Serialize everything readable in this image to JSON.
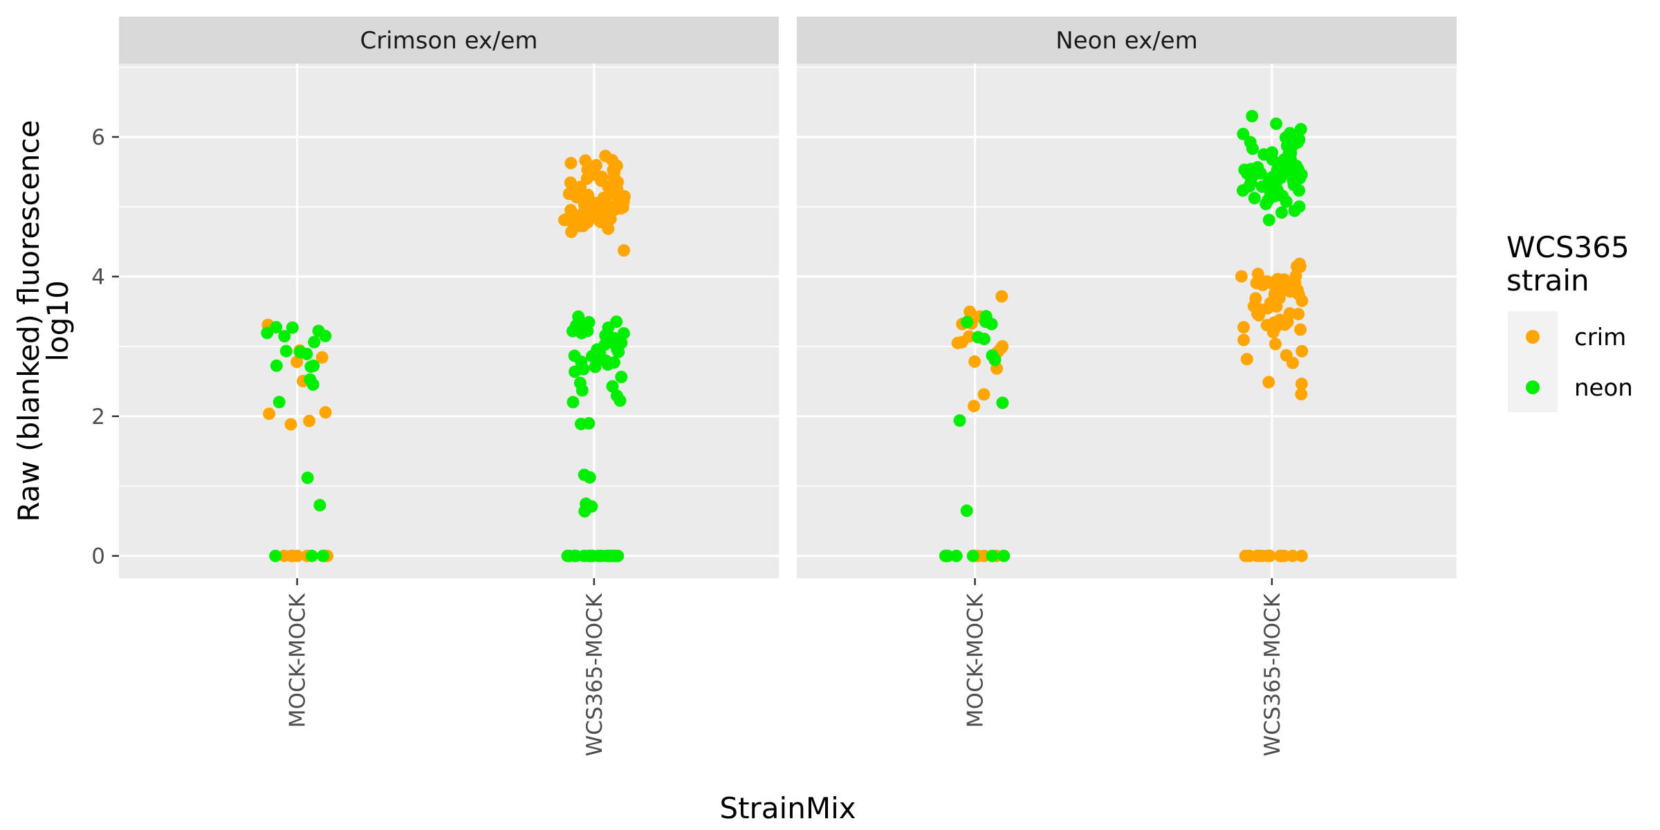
{
  "chart_data": {
    "type": "scatter",
    "subtype": "jittered strip plot, faceted",
    "xlabel": "StrainMix",
    "ylabel": "Raw (blanked) fluorescence",
    "ylabel_line2": "log10",
    "ylim": [
      -0.32,
      7.05
    ],
    "y_ticks": [
      0,
      2,
      4,
      6
    ],
    "y_tick_labels": [
      "0",
      "2",
      "4",
      "6"
    ],
    "categories": [
      "MOCK-MOCK",
      "WCS365-MOCK"
    ],
    "grid": true,
    "legend_position": "right",
    "legend": {
      "title_line1": "WCS365",
      "title_line2": "strain",
      "entries": [
        {
          "name": "crim",
          "color": "#FFA500"
        },
        {
          "name": "neon",
          "color": "#00EE00"
        }
      ]
    },
    "colors": {
      "crim": "#FFA500",
      "neon": "#00EE00",
      "panel_background": "#EBEBEB",
      "strip_background": "#D9D9D9",
      "grid": "#FFFFFF"
    },
    "facets": [
      {
        "label": "Crimson ex/em",
        "groups": [
          {
            "category": "MOCK-MOCK",
            "series": [
              {
                "name": "crim",
                "values": [
                  3.28,
                  2.95,
                  2.82,
                  2.78,
                  2.52,
                  2.05,
                  2.03,
                  1.93,
                  1.91,
                  0,
                  0,
                  0,
                  0,
                  0,
                  0,
                  0
                ]
              },
              {
                "name": "neon",
                "values": [
                  3.28,
                  3.25,
                  3.21,
                  3.19,
                  3.15,
                  3.12,
                  3.05,
                  2.96,
                  2.93,
                  2.9,
                  2.75,
                  2.72,
                  2.7,
                  2.53,
                  2.45,
                  2.2,
                  1.12,
                  0.72,
                  0,
                  0,
                  0
                ]
              }
            ]
          },
          {
            "category": "WCS365-MOCK",
            "series": [
              {
                "name": "crim",
                "values": [
                  5.72,
                  5.68,
                  5.65,
                  5.62,
                  5.6,
                  5.58,
                  5.55,
                  5.52,
                  5.5,
                  5.48,
                  5.45,
                  5.42,
                  5.4,
                  5.38,
                  5.35,
                  5.33,
                  5.3,
                  5.28,
                  5.26,
                  5.24,
                  5.22,
                  5.2,
                  5.18,
                  5.16,
                  5.15,
                  5.13,
                  5.12,
                  5.1,
                  5.09,
                  5.08,
                  5.06,
                  5.05,
                  5.04,
                  5.03,
                  5.02,
                  5.01,
                  5.0,
                  4.99,
                  4.98,
                  4.97,
                  4.96,
                  4.95,
                  4.94,
                  4.93,
                  4.92,
                  4.91,
                  4.9,
                  4.89,
                  4.88,
                  4.87,
                  4.86,
                  4.85,
                  4.84,
                  4.83,
                  4.82,
                  4.81,
                  4.8,
                  4.79,
                  4.78,
                  4.77,
                  4.76,
                  4.75,
                  4.74,
                  4.73,
                  4.72,
                  4.7,
                  4.65,
                  4.35
                ]
              },
              {
                "name": "neon",
                "values": [
                  3.42,
                  3.38,
                  3.35,
                  3.33,
                  3.31,
                  3.29,
                  3.27,
                  3.25,
                  3.22,
                  3.2,
                  3.18,
                  3.15,
                  3.12,
                  3.1,
                  3.08,
                  3.05,
                  3.03,
                  3.0,
                  2.98,
                  2.96,
                  2.94,
                  2.92,
                  2.9,
                  2.87,
                  2.85,
                  2.82,
                  2.8,
                  2.77,
                  2.75,
                  2.72,
                  2.7,
                  2.65,
                  2.62,
                  2.55,
                  2.5,
                  2.45,
                  2.35,
                  2.3,
                  2.2,
                  2.18,
                  1.9,
                  1.9,
                  1.18,
                  1.12,
                  0.72,
                  0.7,
                  0.62,
                  0,
                  0,
                  0,
                  0,
                  0,
                  0,
                  0,
                  0,
                  0,
                  0,
                  0,
                  0,
                  0,
                  0,
                  0,
                  0,
                  0,
                  0,
                  0,
                  0,
                  0,
                  0
                ]
              }
            ]
          }
        ]
      },
      {
        "label": "Neon ex/em",
        "groups": [
          {
            "category": "MOCK-MOCK",
            "series": [
              {
                "name": "crim",
                "values": [
                  3.7,
                  3.47,
                  3.45,
                  3.35,
                  3.3,
                  3.15,
                  3.08,
                  3.05,
                  3.02,
                  2.98,
                  2.92,
                  2.78,
                  2.7,
                  2.32,
                  2.15,
                  0,
                  0,
                  0,
                  0,
                  0,
                  0
                ]
              },
              {
                "name": "neon",
                "values": [
                  3.42,
                  3.35,
                  3.32,
                  3.3,
                  3.15,
                  3.08,
                  2.85,
                  2.78,
                  2.2,
                  1.95,
                  0.63,
                  0,
                  0,
                  0,
                  0,
                  0,
                  0
                ]
              }
            ]
          },
          {
            "category": "WCS365-MOCK",
            "series": [
              {
                "name": "crim",
                "values": [
                  4.18,
                  4.15,
                  4.12,
                  4.05,
                  4.0,
                  3.98,
                  3.96,
                  3.95,
                  3.94,
                  3.93,
                  3.92,
                  3.9,
                  3.88,
                  3.86,
                  3.85,
                  3.82,
                  3.8,
                  3.78,
                  3.76,
                  3.74,
                  3.72,
                  3.7,
                  3.68,
                  3.65,
                  3.62,
                  3.6,
                  3.58,
                  3.56,
                  3.55,
                  3.53,
                  3.5,
                  3.48,
                  3.45,
                  3.42,
                  3.4,
                  3.38,
                  3.35,
                  3.32,
                  3.3,
                  3.28,
                  3.25,
                  3.22,
                  3.2,
                  3.1,
                  3.05,
                  2.95,
                  2.85,
                  2.8,
                  2.75,
                  2.48,
                  2.45,
                  2.3,
                  0,
                  0,
                  0,
                  0,
                  0,
                  0,
                  0,
                  0,
                  0,
                  0,
                  0,
                  0,
                  0
                ]
              },
              {
                "name": "neon",
                "values": [
                  6.32,
                  6.2,
                  6.1,
                  6.05,
                  6.02,
                  5.98,
                  5.95,
                  5.92,
                  5.9,
                  5.88,
                  5.85,
                  5.82,
                  5.8,
                  5.78,
                  5.76,
                  5.74,
                  5.72,
                  5.7,
                  5.68,
                  5.66,
                  5.65,
                  5.63,
                  5.62,
                  5.6,
                  5.58,
                  5.57,
                  5.56,
                  5.55,
                  5.54,
                  5.53,
                  5.52,
                  5.51,
                  5.5,
                  5.49,
                  5.48,
                  5.47,
                  5.46,
                  5.45,
                  5.44,
                  5.43,
                  5.42,
                  5.41,
                  5.4,
                  5.39,
                  5.38,
                  5.36,
                  5.35,
                  5.33,
                  5.32,
                  5.3,
                  5.28,
                  5.26,
                  5.25,
                  5.22,
                  5.2,
                  5.18,
                  5.15,
                  5.12,
                  5.1,
                  5.08,
                  5.05,
                  5.0,
                  4.95,
                  4.92,
                  4.82
                ]
              }
            ]
          }
        ]
      }
    ]
  }
}
